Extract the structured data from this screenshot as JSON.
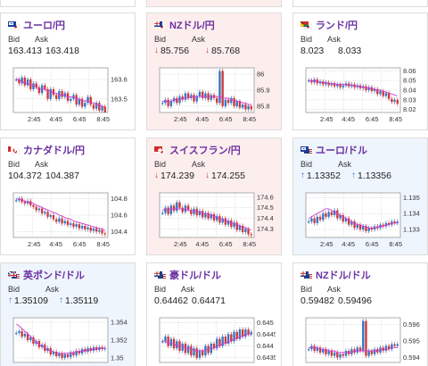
{
  "pairs": [
    {
      "name": "ユーロ/円",
      "bid": "163.413",
      "ask": "163.418",
      "trend": "neutral",
      "flag": "eu",
      "bid_label": "Bid",
      "ask_label": "Ask",
      "yticks": [
        "163.6",
        "163.5"
      ],
      "xticks": [
        "2:45",
        "4:45",
        "6:45",
        "8:45"
      ],
      "ymin": 163.43,
      "ymax": 163.66,
      "series": [
        163.6,
        163.58,
        163.61,
        163.57,
        163.6,
        163.55,
        163.58,
        163.56,
        163.53,
        163.57,
        163.55,
        163.5,
        163.55,
        163.52,
        163.5,
        163.54,
        163.51,
        163.53,
        163.49,
        163.5,
        163.52,
        163.47,
        163.5,
        163.46,
        163.48,
        163.51,
        163.47,
        163.45,
        163.48,
        163.44,
        163.46,
        163.43
      ],
      "ma": [
        163.6,
        163.6,
        163.59,
        163.58,
        163.58,
        163.57,
        163.57,
        163.56,
        163.55,
        163.55,
        163.55,
        163.54,
        163.54,
        163.53,
        163.53,
        163.52,
        163.52,
        163.52,
        163.51,
        163.51,
        163.51,
        163.5,
        163.5,
        163.49,
        163.49,
        163.49,
        163.48,
        163.48,
        163.47,
        163.47,
        163.46,
        163.46
      ]
    },
    {
      "name": "NZドル/円",
      "bid": "85.756",
      "ask": "85.768",
      "trend": "down",
      "flag": "nz",
      "bid_label": "Bid",
      "ask_label": "Ask",
      "yticks": [
        "86",
        "85.9",
        "85.8"
      ],
      "xticks": [
        "2:45",
        "4:45",
        "6:45",
        "8:45"
      ],
      "ymin": 85.76,
      "ymax": 86.04,
      "series": [
        85.82,
        85.84,
        85.8,
        85.83,
        85.85,
        85.82,
        85.86,
        85.84,
        85.88,
        85.85,
        85.87,
        85.83,
        85.86,
        85.89,
        85.85,
        85.88,
        85.84,
        85.87,
        85.85,
        85.82,
        86.02,
        85.8,
        85.84,
        85.82,
        85.85,
        85.8,
        85.83,
        85.79,
        85.81,
        85.78,
        85.8,
        85.78
      ],
      "ma": [
        85.83,
        85.83,
        85.83,
        85.83,
        85.84,
        85.84,
        85.84,
        85.85,
        85.85,
        85.85,
        85.86,
        85.86,
        85.86,
        85.86,
        85.86,
        85.86,
        85.86,
        85.86,
        85.86,
        85.86,
        85.86,
        85.85,
        85.85,
        85.85,
        85.84,
        85.84,
        85.83,
        85.83,
        85.82,
        85.82,
        85.81,
        85.81
      ]
    },
    {
      "name": "ランド/円",
      "bid": "8.023",
      "ask": "8.033",
      "trend": "neutral",
      "flag": "za",
      "bid_label": "Bid",
      "ask_label": "Ask",
      "yticks": [
        "8.06",
        "8.05",
        "8.04",
        "8.03",
        "8.02"
      ],
      "xticks": [
        "2:45",
        "4:45",
        "6:45",
        "8:45"
      ],
      "ymin": 8.017,
      "ymax": 8.063,
      "series": [
        8.05,
        8.048,
        8.051,
        8.047,
        8.049,
        8.046,
        8.048,
        8.045,
        8.047,
        8.044,
        8.046,
        8.043,
        8.045,
        8.047,
        8.044,
        8.046,
        8.043,
        8.045,
        8.042,
        8.044,
        8.04,
        8.043,
        8.039,
        8.041,
        8.036,
        8.039,
        8.034,
        8.037,
        8.031,
        8.028,
        8.03,
        8.026
      ],
      "ma": [
        8.05,
        8.05,
        8.049,
        8.049,
        8.048,
        8.048,
        8.048,
        8.047,
        8.047,
        8.047,
        8.046,
        8.046,
        8.046,
        8.045,
        8.045,
        8.045,
        8.044,
        8.044,
        8.044,
        8.043,
        8.043,
        8.042,
        8.042,
        8.041,
        8.04,
        8.04,
        8.039,
        8.038,
        8.037,
        8.036,
        8.035,
        8.034
      ]
    },
    {
      "name": "カナダドル/円",
      "bid": "104.372",
      "ask": "104.387",
      "trend": "neutral",
      "flag": "ca",
      "bid_label": "Bid",
      "ask_label": "Ask",
      "yticks": [
        "104.8",
        "104.6",
        "104.4"
      ],
      "xticks": [
        "2:45",
        "4:45",
        "6:45",
        "8:45"
      ],
      "ymin": 104.33,
      "ymax": 104.87,
      "series": [
        104.78,
        104.8,
        104.76,
        104.74,
        104.77,
        104.72,
        104.7,
        104.66,
        104.68,
        104.62,
        104.64,
        104.58,
        104.6,
        104.55,
        104.52,
        104.56,
        104.5,
        104.53,
        104.48,
        104.5,
        104.46,
        104.49,
        104.44,
        104.47,
        104.43,
        104.45,
        104.41,
        104.44,
        104.4,
        104.42,
        104.38,
        104.37
      ],
      "ma": [
        104.8,
        104.79,
        104.78,
        104.77,
        104.76,
        104.75,
        104.74,
        104.72,
        104.71,
        104.69,
        104.68,
        104.66,
        104.65,
        104.63,
        104.62,
        104.6,
        104.59,
        104.57,
        104.56,
        104.55,
        104.53,
        104.52,
        104.51,
        104.5,
        104.49,
        104.48,
        104.47,
        104.46,
        104.45,
        104.44,
        104.43,
        104.42
      ]
    },
    {
      "name": "スイスフラン/円",
      "bid": "174.239",
      "ask": "174.255",
      "trend": "down",
      "flag": "ch",
      "bid_label": "Bid",
      "ask_label": "Ask",
      "yticks": [
        "174.6",
        "174.5",
        "174.4",
        "174.3"
      ],
      "xticks": [
        "2:45",
        "4:45",
        "6:45",
        "8:45"
      ],
      "ymin": 174.22,
      "ymax": 174.64,
      "series": [
        174.45,
        174.5,
        174.44,
        174.52,
        174.47,
        174.55,
        174.5,
        174.46,
        174.52,
        174.48,
        174.44,
        174.49,
        174.43,
        174.47,
        174.41,
        174.45,
        174.4,
        174.44,
        174.38,
        174.42,
        174.36,
        174.4,
        174.34,
        174.38,
        174.32,
        174.36,
        174.29,
        174.33,
        174.27,
        174.3,
        174.25,
        174.24
      ],
      "ma": [
        174.48,
        174.48,
        174.48,
        174.49,
        174.49,
        174.49,
        174.49,
        174.49,
        174.48,
        174.48,
        174.47,
        174.47,
        174.46,
        174.46,
        174.45,
        174.44,
        174.44,
        174.43,
        174.42,
        174.41,
        174.4,
        174.39,
        174.38,
        174.37,
        174.36,
        174.35,
        174.34,
        174.33,
        174.32,
        174.31,
        174.3,
        174.29
      ]
    },
    {
      "name": "ユーロ/ドル",
      "bid": "1.13352",
      "ask": "1.13356",
      "trend": "up",
      "flag": "eu",
      "bid_label": "Bid",
      "ask_label": "Ask",
      "yticks": [
        "1.135",
        "1.134",
        "1.133"
      ],
      "xticks": [
        "2:45",
        "4:45",
        "6:45",
        "8:45"
      ],
      "ymin": 1.1325,
      "ymax": 1.1353,
      "series": [
        1.1335,
        1.1337,
        1.1334,
        1.1338,
        1.1336,
        1.134,
        1.1338,
        1.1341,
        1.1339,
        1.1342,
        1.1337,
        1.1339,
        1.1335,
        1.1337,
        1.1333,
        1.1335,
        1.1331,
        1.1333,
        1.133,
        1.1332,
        1.1329,
        1.1331,
        1.133,
        1.1332,
        1.1331,
        1.1333,
        1.1332,
        1.1334,
        1.1333,
        1.1335,
        1.1334,
        1.1335
      ],
      "ma": [
        1.1337,
        1.1338,
        1.1339,
        1.134,
        1.1341,
        1.1342,
        1.1343,
        1.1343,
        1.1342,
        1.1341,
        1.134,
        1.1339,
        1.1338,
        1.1337,
        1.1336,
        1.1335,
        1.1334,
        1.1333,
        1.1333,
        1.1332,
        1.1332,
        1.1331,
        1.1331,
        1.1331,
        1.1331,
        1.1332,
        1.1332,
        1.1333,
        1.1333,
        1.1334,
        1.1334,
        1.1334
      ]
    },
    {
      "name": "英ポンド/ドル",
      "bid": "1.35109",
      "ask": "1.35119",
      "trend": "up",
      "flag": "gb",
      "bid_label": "Bid",
      "ask_label": "Ask",
      "yticks": [
        "1.354",
        "1.352",
        "1.35"
      ],
      "xticks": [
        "2:45",
        "4:45",
        "6:45",
        "8:45"
      ],
      "ymin": 1.3495,
      "ymax": 1.3545,
      "series": [
        1.3528,
        1.353,
        1.3524,
        1.3527,
        1.352,
        1.3523,
        1.3516,
        1.3519,
        1.3512,
        1.3515,
        1.3508,
        1.3511,
        1.3504,
        1.3507,
        1.3502,
        1.3505,
        1.35,
        1.3504,
        1.3501,
        1.3506,
        1.3503,
        1.3508,
        1.3505,
        1.351,
        1.3507,
        1.3511,
        1.3508,
        1.3512,
        1.3509,
        1.3512,
        1.351,
        1.3511
      ],
      "ma": [
        1.3538,
        1.3536,
        1.3533,
        1.353,
        1.3527,
        1.3524,
        1.3521,
        1.3518,
        1.3515,
        1.3513,
        1.3511,
        1.3509,
        1.3508,
        1.3507,
        1.3506,
        1.3505,
        1.3505,
        1.3505,
        1.3505,
        1.3506,
        1.3506,
        1.3507,
        1.3507,
        1.3508,
        1.3508,
        1.3509,
        1.3509,
        1.351,
        1.351,
        1.3511,
        1.3511,
        1.3511
      ]
    },
    {
      "name": "豪ドル/ドル",
      "bid": "0.64462",
      "ask": "0.64471",
      "trend": "neutral",
      "flag": "au",
      "bid_label": "Bid",
      "ask_label": "Ask",
      "yticks": [
        "0.645",
        "0.6445",
        "0.644",
        "0.6435"
      ],
      "xticks": [
        "2:45",
        "4:45",
        "6:45",
        "8:45"
      ],
      "ymin": 0.6433,
      "ymax": 0.6452,
      "series": [
        0.6442,
        0.6444,
        0.644,
        0.6443,
        0.6439,
        0.6442,
        0.6438,
        0.6441,
        0.6437,
        0.644,
        0.6436,
        0.6439,
        0.6435,
        0.6438,
        0.6436,
        0.644,
        0.6437,
        0.6441,
        0.6439,
        0.6443,
        0.644,
        0.6444,
        0.6441,
        0.6445,
        0.6442,
        0.6446,
        0.6443,
        0.6447,
        0.6444,
        0.6447,
        0.6445,
        0.6446
      ],
      "ma": [
        0.6442,
        0.6442,
        0.6441,
        0.6441,
        0.6441,
        0.644,
        0.644,
        0.644,
        0.6439,
        0.6439,
        0.6439,
        0.6438,
        0.6438,
        0.6438,
        0.6438,
        0.6438,
        0.6439,
        0.6439,
        0.6439,
        0.644,
        0.644,
        0.6441,
        0.6441,
        0.6442,
        0.6442,
        0.6443,
        0.6443,
        0.6444,
        0.6444,
        0.6445,
        0.6445,
        0.6445
      ]
    },
    {
      "name": "NZドル/ドル",
      "bid": "0.59482",
      "ask": "0.59496",
      "trend": "neutral",
      "flag": "nz",
      "bid_label": "Bid",
      "ask_label": "Ask",
      "yticks": [
        "0.596",
        "0.595",
        "0.594"
      ],
      "xticks": [
        "2:45",
        "4:45",
        "6:45",
        "8:45"
      ],
      "ymin": 0.5937,
      "ymax": 0.5964,
      "series": [
        0.5945,
        0.5947,
        0.5944,
        0.5946,
        0.5943,
        0.5945,
        0.5942,
        0.5944,
        0.5941,
        0.5943,
        0.594,
        0.5942,
        0.5941,
        0.5944,
        0.5942,
        0.5945,
        0.5943,
        0.5946,
        0.5944,
        0.5962,
        0.5941,
        0.5944,
        0.5942,
        0.5945,
        0.5943,
        0.5946,
        0.5944,
        0.5947,
        0.5945,
        0.5948,
        0.5947,
        0.5948
      ],
      "ma": [
        0.5946,
        0.5946,
        0.5946,
        0.5946,
        0.5945,
        0.5945,
        0.5945,
        0.5944,
        0.5944,
        0.5944,
        0.5943,
        0.5943,
        0.5943,
        0.5943,
        0.5943,
        0.5943,
        0.5944,
        0.5944,
        0.5944,
        0.5944,
        0.5944,
        0.5944,
        0.5944,
        0.5944,
        0.5944,
        0.5945,
        0.5945,
        0.5945,
        0.5945,
        0.5946,
        0.5946,
        0.5946
      ]
    }
  ],
  "colors": {
    "up": "#3577c9",
    "down": "#d03a3a",
    "ma": "#d23ad2",
    "title": "#6a2fa0"
  }
}
